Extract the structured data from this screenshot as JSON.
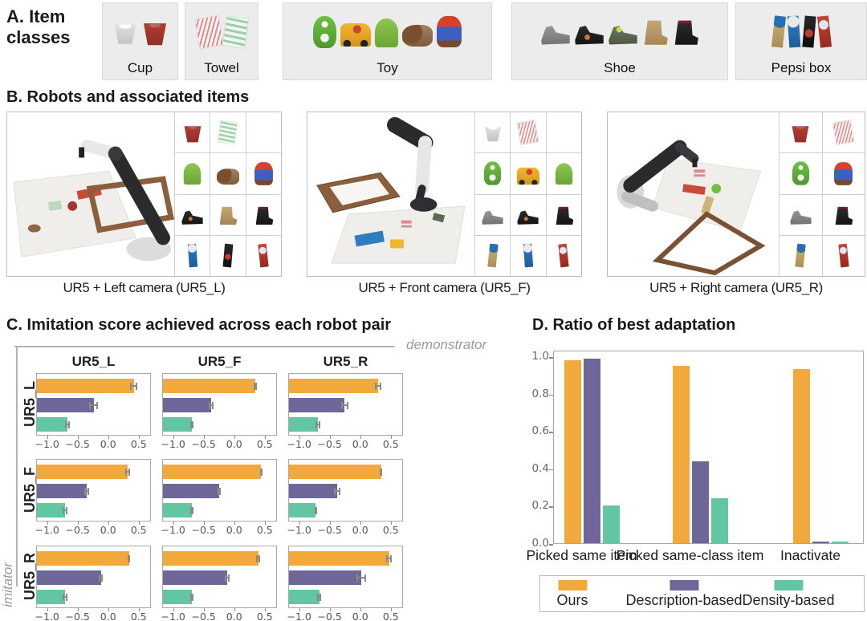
{
  "colors": {
    "ours": "#F2A93C",
    "description_based": "#6F6699",
    "density_based": "#63C6A3",
    "error_bar": "#8a8a8a",
    "plot_border": "#a8a8a8",
    "bracket": "#b5b5b5",
    "class_box_bg": "#ececec"
  },
  "section_a": {
    "title": "A. Item classes",
    "classes": [
      {
        "label": "Cup",
        "icons": [
          "white-cup-icon",
          "red-cup-icon"
        ]
      },
      {
        "label": "Towel",
        "icons": [
          "red-towel-icon",
          "green-towel-icon"
        ]
      },
      {
        "label": "Toy",
        "icons": [
          "yoshi-icon",
          "truck-icon",
          "android-icon",
          "lion-icon",
          "mario-icon"
        ]
      },
      {
        "label": "Shoe",
        "icons": [
          "gray-sneaker-icon",
          "black-sneaker-icon",
          "green-sneaker-icon",
          "tan-boot-icon",
          "black-boot-icon"
        ]
      },
      {
        "label": "Pepsi box",
        "icons": [
          "gold-box-icon",
          "blue-box-icon",
          "black-box-icon",
          "red-box-icon"
        ]
      }
    ]
  },
  "section_b": {
    "title": "B. Robots and associated items",
    "panels": [
      {
        "caption": "UR5 + Left camera (UR5_L)",
        "scene": "left",
        "grid_icons": [
          [
            "red-cup-icon",
            "green-towel-icon",
            ""
          ],
          [
            "android-icon",
            "lion-icon",
            "mario-icon"
          ],
          [
            "black-sneaker-icon",
            "tan-boot-icon",
            "black-boot-icon"
          ],
          [
            "blue-box-icon",
            "black-box-icon",
            "red-box-icon"
          ]
        ]
      },
      {
        "caption": "UR5 + Front camera (UR5_F)",
        "scene": "front",
        "grid_icons": [
          [
            "white-cup-icon",
            "red-towel-icon",
            ""
          ],
          [
            "yoshi-icon",
            "truck-icon",
            "android-icon"
          ],
          [
            "gray-sneaker-icon",
            "black-sneaker-icon",
            "black-boot-icon"
          ],
          [
            "gold-box-icon",
            "blue-box-icon",
            "red-box-icon"
          ]
        ]
      },
      {
        "caption": "UR5 + Right camera (UR5_R)",
        "scene": "right",
        "grid_icons": [
          [
            "red-cup-icon",
            "red-towel-icon"
          ],
          [
            "yoshi-icon",
            "mario-icon"
          ],
          [
            "gray-sneaker-icon",
            "black-boot-icon"
          ],
          [
            "gold-box-icon",
            "red-box-icon"
          ]
        ]
      }
    ]
  },
  "section_c": {
    "title": "C. Imitation score achieved across each robot pair",
    "demonstrator_label": "demonstrator",
    "imitator_label": "imitator"
  },
  "section_d": {
    "title": "D. Ratio of best adaptation"
  },
  "legend": {
    "entries": [
      {
        "label": "Ours",
        "color": "#F2A93C"
      },
      {
        "label": "Description-based",
        "color": "#6F6699"
      },
      {
        "label": "Density-based",
        "color": "#63C6A3"
      }
    ]
  },
  "chart_data": [
    {
      "id": "imitation-score-grid",
      "type": "bar",
      "orientation": "horizontal",
      "title": "C. Imitation score achieved across each robot pair",
      "columns_axis_label": "demonstrator",
      "rows_axis_label": "imitator",
      "demonstrators": [
        "UR5_L",
        "UR5_F",
        "UR5_R"
      ],
      "imitators": [
        "UR5_L",
        "UR5_F",
        "UR5_R"
      ],
      "series_names": [
        "Ours",
        "Description-based",
        "Density-based"
      ],
      "xlim": [
        -1.18,
        0.7
      ],
      "xticks": [
        -1.0,
        -0.5,
        0.0,
        0.5
      ],
      "xtick_labels": [
        "−1.0",
        "−0.5",
        "0.0",
        "0.5"
      ],
      "grid": false,
      "cells": [
        [
          {
            "values": [
              0.43,
              -0.24,
              -0.68
            ],
            "errors": [
              0.06,
              0.07,
              0.04
            ]
          },
          {
            "values": [
              0.35,
              -0.38,
              -0.7
            ],
            "errors": [
              0.03,
              0.04,
              0.03
            ]
          },
          {
            "values": [
              0.3,
              -0.26,
              -0.7
            ],
            "errors": [
              0.05,
              0.06,
              0.04
            ]
          }
        ],
        [
          {
            "values": [
              0.32,
              -0.36,
              -0.72
            ],
            "errors": [
              0.04,
              0.04,
              0.04
            ]
          },
          {
            "values": [
              0.45,
              -0.25,
              -0.7
            ],
            "errors": [
              0.02,
              0.03,
              0.03
            ]
          },
          {
            "values": [
              0.35,
              -0.38,
              -0.74
            ],
            "errors": [
              0.02,
              0.05,
              0.02
            ]
          }
        ],
        [
          {
            "values": [
              0.35,
              -0.12,
              -0.72
            ],
            "errors": [
              0.02,
              0.03,
              0.04
            ]
          },
          {
            "values": [
              0.4,
              -0.12,
              -0.7
            ],
            "errors": [
              0.03,
              0.04,
              0.03
            ]
          },
          {
            "values": [
              0.48,
              0.02,
              -0.68
            ],
            "errors": [
              0.05,
              0.08,
              0.03
            ]
          }
        ]
      ]
    },
    {
      "id": "ratio-best-adaptation",
      "type": "bar",
      "title": "D. Ratio of best adaptation",
      "categories": [
        "Picked same item",
        "Picked same-class item",
        "Inactivate"
      ],
      "series": [
        {
          "name": "Ours",
          "values": [
            0.98,
            0.95,
            0.93
          ]
        },
        {
          "name": "Description-based",
          "values": [
            0.99,
            0.44,
            0.01
          ]
        },
        {
          "name": "Density-based",
          "values": [
            0.2,
            0.24,
            0.01
          ]
        }
      ],
      "ylim": [
        0,
        1.035
      ],
      "yticks": [
        0.0,
        0.2,
        0.4,
        0.6,
        0.8,
        1.0
      ],
      "ytick_labels": [
        "0.0",
        "0.2",
        "0.4",
        "0.6",
        "0.8",
        "1.0"
      ],
      "legend_position": "bottom",
      "grid": false
    }
  ]
}
